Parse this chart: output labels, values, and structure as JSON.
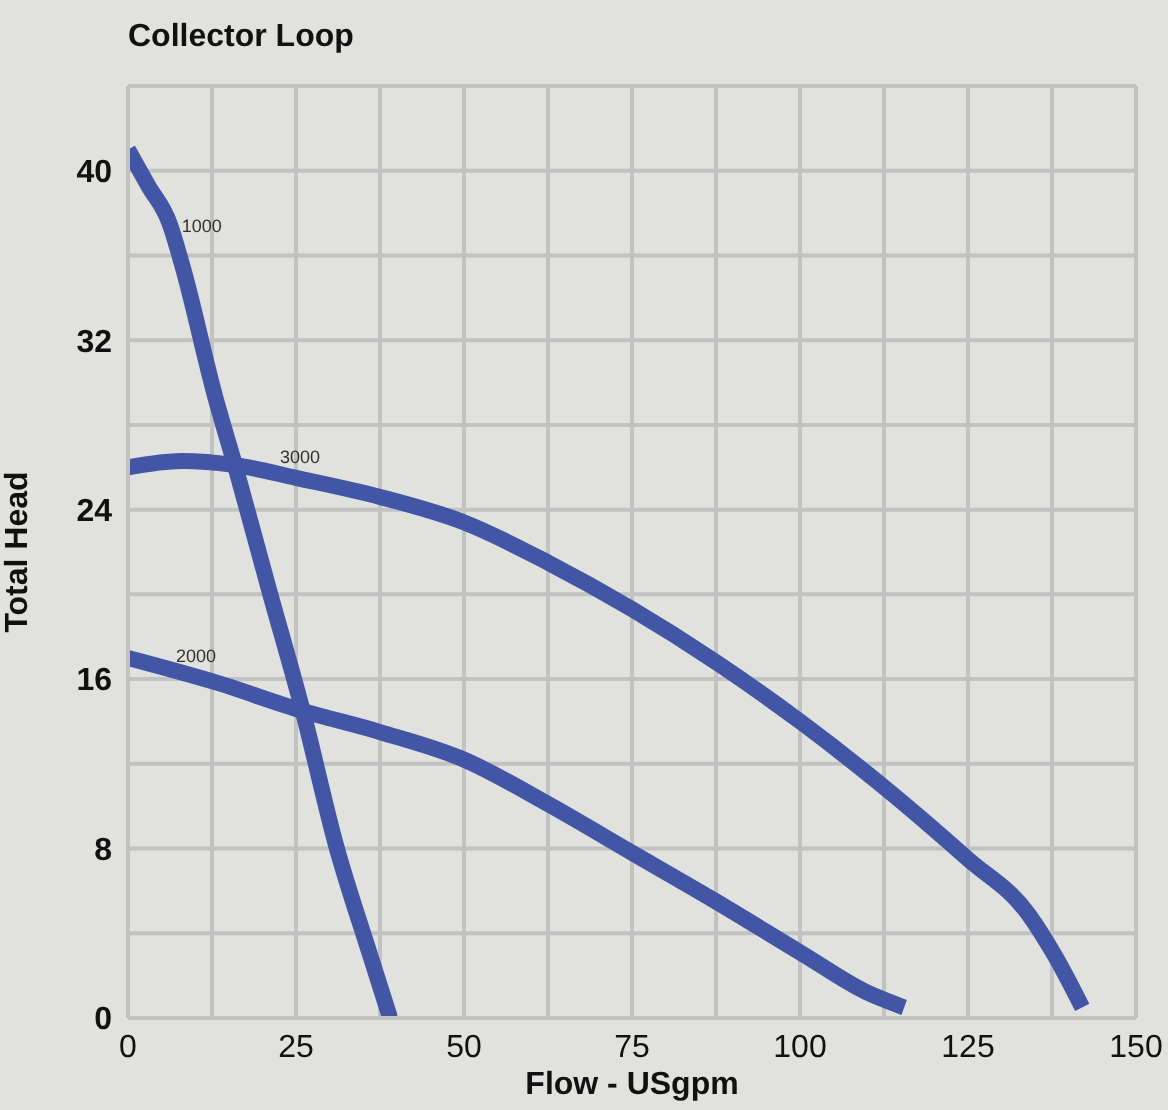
{
  "chart_data": {
    "type": "line",
    "title": "Collector Loop",
    "xlabel": "Flow - USgpm",
    "ylabel": "Total Head",
    "xlim": [
      0,
      150
    ],
    "ylim": [
      0,
      44
    ],
    "xticks": [
      0,
      {
        "value": 12.5,
        "label": null
      },
      25,
      {
        "value": 37.5,
        "label": null
      },
      50,
      {
        "value": 62.5,
        "label": null
      },
      75,
      {
        "value": 87.5,
        "label": null
      },
      100,
      {
        "value": 112.5,
        "label": null
      },
      125,
      {
        "value": 137.5,
        "label": null
      },
      150
    ],
    "yticks": [
      0,
      {
        "value": 4,
        "label": null
      },
      8,
      {
        "value": 12,
        "label": null
      },
      16,
      {
        "value": 20,
        "label": null
      },
      24,
      {
        "value": 28,
        "label": null
      },
      32,
      {
        "value": 36,
        "label": null
      },
      40,
      {
        "value": 44,
        "label": null
      }
    ],
    "grid": true,
    "marker": "none",
    "line_style": "solid",
    "series": [
      {
        "name": "1000",
        "color": "#4355a5",
        "x": [
          0,
          3,
          6.2,
          8.1,
          13,
          16,
          21,
          26,
          31,
          36,
          39
        ],
        "values": [
          41,
          39.3,
          37.5,
          35.5,
          29.3,
          26,
          20.2,
          14.5,
          8.1,
          3,
          0
        ]
      },
      {
        "name": "3000",
        "color": "#4355a5",
        "x": [
          0,
          8,
          16,
          25,
          37.5,
          50,
          62.5,
          75,
          87.5,
          100,
          112.5,
          125,
          134,
          138,
          142
        ],
        "values": [
          26,
          26.3,
          26.1,
          25.5,
          24.6,
          23.4,
          21.5,
          19.3,
          16.8,
          14,
          10.9,
          7.5,
          4.9,
          2.9,
          0.5
        ]
      },
      {
        "name": "2000",
        "color": "#4355a5",
        "x": [
          0,
          12.5,
          26,
          37.5,
          50,
          62.5,
          75,
          87.5,
          100,
          110,
          115.5
        ],
        "values": [
          17,
          15.9,
          14.5,
          13.5,
          12.2,
          10.1,
          7.8,
          5.5,
          3.1,
          1.2,
          0.5
        ]
      }
    ]
  }
}
